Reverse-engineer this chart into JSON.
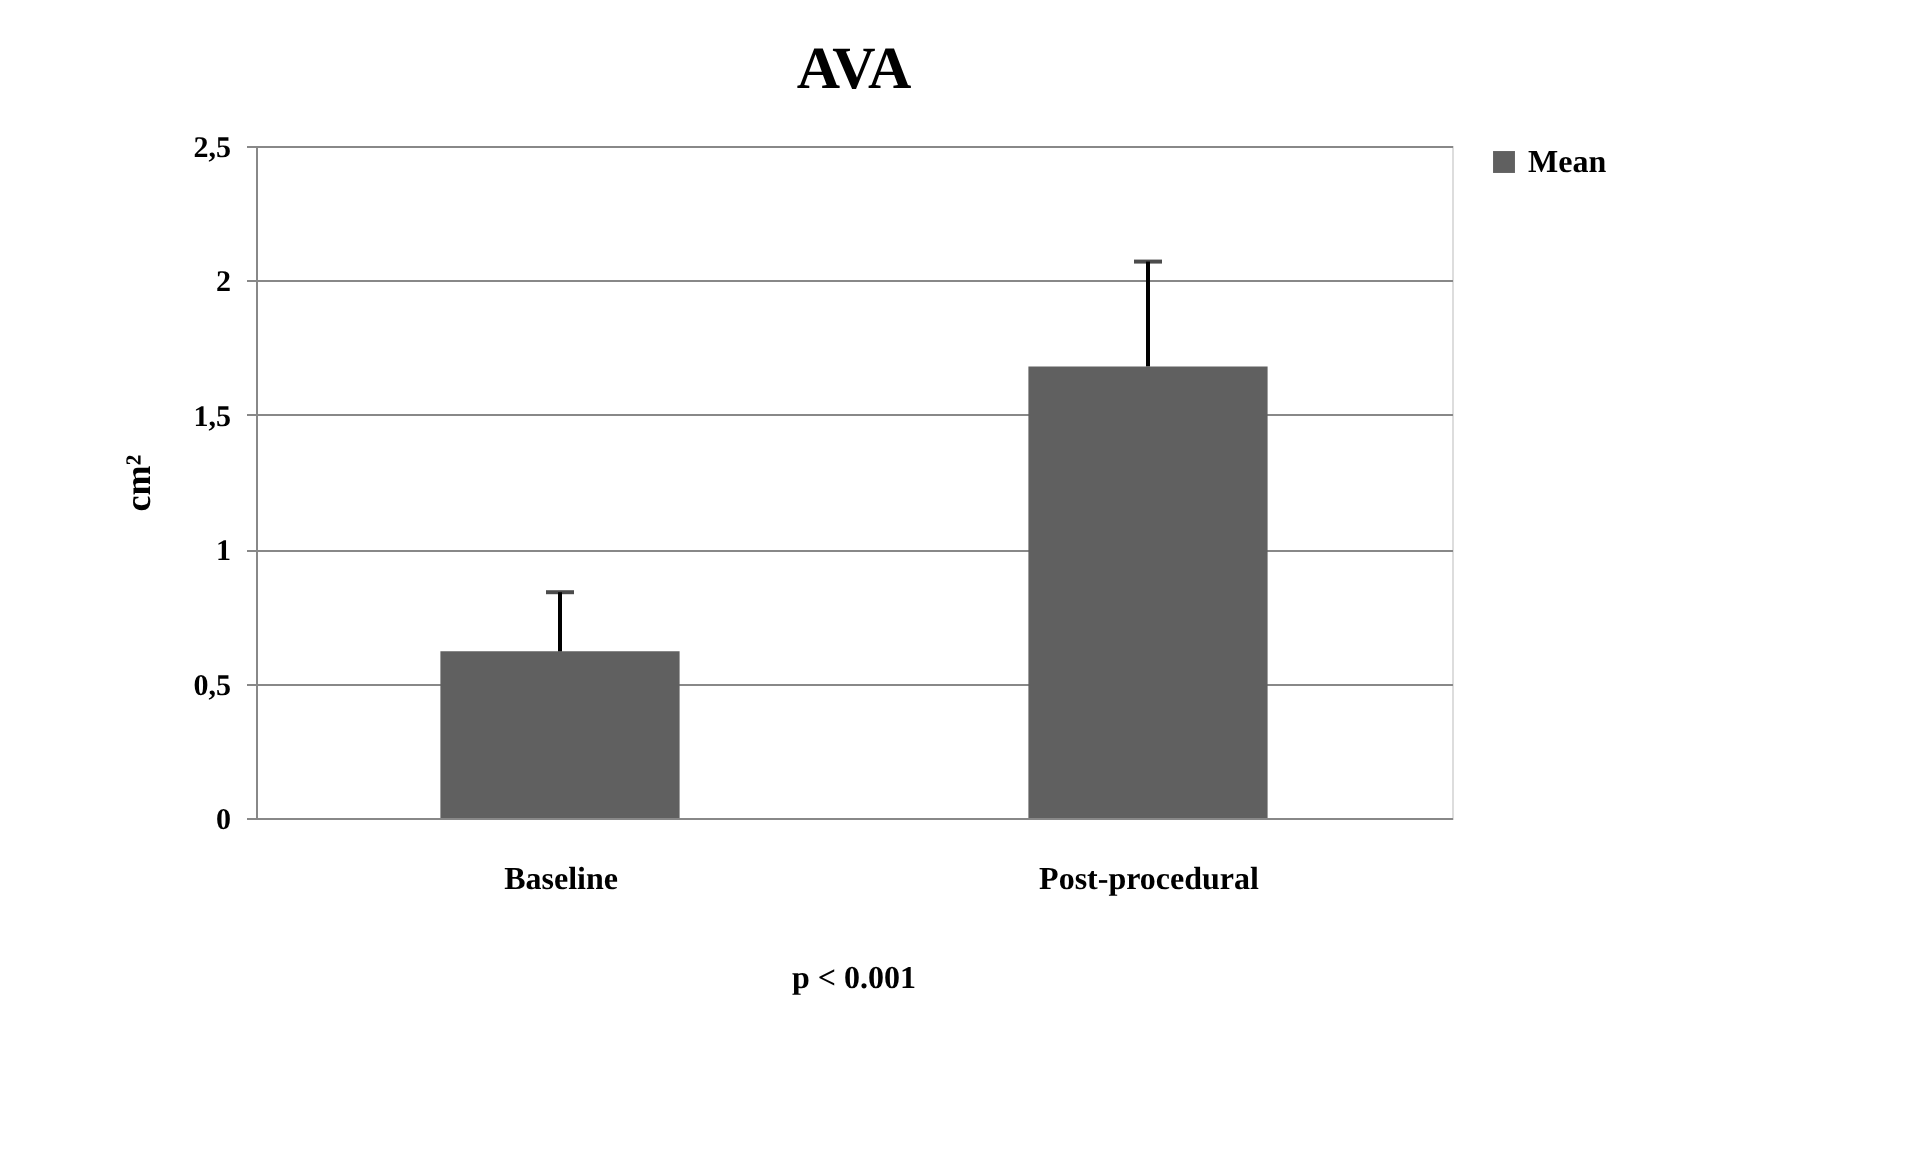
{
  "chart_data": {
    "type": "bar",
    "title": "AVA",
    "ylabel": "cm²",
    "categories": [
      "Baseline",
      "Post-procedural"
    ],
    "series": [
      {
        "name": "Mean",
        "color": "#606060",
        "values": [
          0.62,
          1.68
        ],
        "errors": [
          [
            0.62,
            0.84
          ],
          [
            1.68,
            2.07
          ]
        ]
      }
    ],
    "ylim": [
      0,
      2.5
    ],
    "yticks": [
      0,
      {
        "value": 0.5,
        "label": "0,5"
      },
      1,
      {
        "value": 1.5,
        "label": "1,5"
      },
      2,
      {
        "value": 2.5,
        "label": "2,5"
      }
    ],
    "grid": "y",
    "legend": "right",
    "annotations": [
      "p < 0.001"
    ]
  }
}
